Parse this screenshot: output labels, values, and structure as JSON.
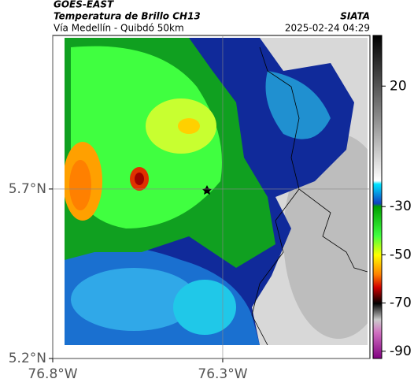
{
  "header": {
    "title": "GOES-EAST",
    "subtitle": "Temperatura de Brillo CH13",
    "region": "Vía Medellín - Quibdó 50km",
    "source": "SIATA",
    "datetime": "2025-02-24 04:29"
  },
  "map": {
    "xlim": [
      -76.8,
      -75.867
    ],
    "ylim": [
      5.2,
      6.153
    ],
    "xticks": [
      {
        "value": -76.8,
        "label": "76.8°W"
      },
      {
        "value": -76.3,
        "label": "76.3°W"
      }
    ],
    "yticks": [
      {
        "value": 5.2,
        "label": "5.2°N"
      },
      {
        "value": 5.7,
        "label": "5.7°N"
      }
    ],
    "grid": true
  },
  "colorbar": {
    "clim": [
      -93,
      41
    ],
    "ticks": [
      20,
      -30,
      -50,
      -70,
      -90
    ]
  }
}
